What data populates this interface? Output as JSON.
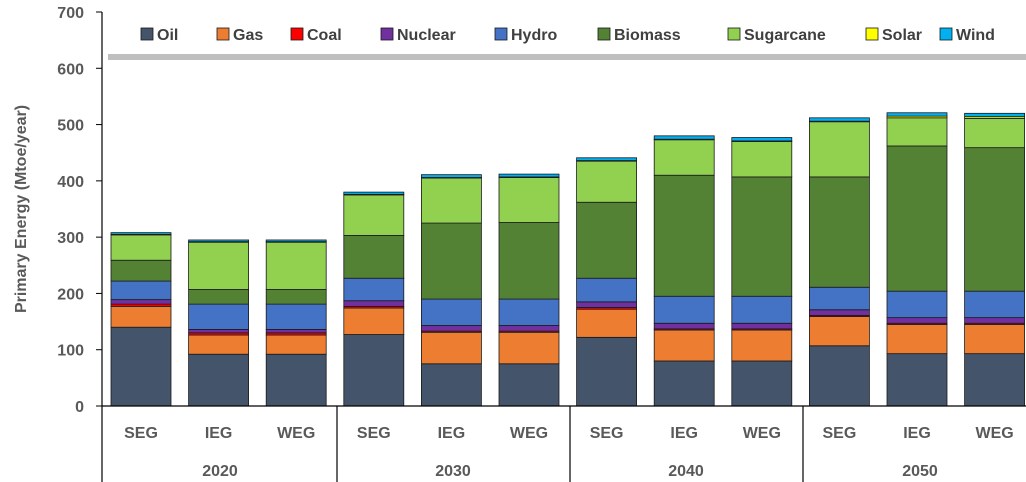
{
  "chart_data": {
    "type": "bar",
    "stacked": true,
    "title": "",
    "xlabel": "",
    "ylabel": "Primary Energy (Mtoe/year)",
    "ylim": [
      0,
      700
    ],
    "yticks": [
      0,
      100,
      200,
      300,
      400,
      500,
      600,
      700
    ],
    "grid": false,
    "legend_position": "top",
    "categories": [
      "SEG",
      "IEG",
      "WEG",
      "SEG",
      "IEG",
      "WEG",
      "SEG",
      "IEG",
      "WEG",
      "SEG",
      "IEG",
      "WEG"
    ],
    "groups": [
      {
        "label": "2020",
        "categories": [
          "SEG",
          "IEG",
          "WEG"
        ]
      },
      {
        "label": "2030",
        "categories": [
          "SEG",
          "IEG",
          "WEG"
        ]
      },
      {
        "label": "2040",
        "categories": [
          "SEG",
          "IEG",
          "WEG"
        ]
      },
      {
        "label": "2050",
        "categories": [
          "SEG",
          "IEG",
          "WEG"
        ]
      }
    ],
    "series": [
      {
        "name": "Oil",
        "color": "#44546A",
        "values": [
          140,
          92,
          92,
          127,
          75,
          75,
          122,
          80,
          80,
          107,
          93,
          93
        ]
      },
      {
        "name": "Gas",
        "color": "#ED7D31",
        "values": [
          37,
          34,
          34,
          47,
          56,
          56,
          50,
          55,
          55,
          52,
          52,
          52
        ]
      },
      {
        "name": "Coal",
        "color": "#FF0000",
        "values": [
          4,
          4,
          4,
          3,
          2,
          2,
          3,
          2,
          2,
          2,
          2,
          2
        ]
      },
      {
        "name": "Nuclear",
        "color": "#7030A0",
        "values": [
          8,
          6,
          6,
          10,
          10,
          10,
          10,
          10,
          10,
          10,
          10,
          10
        ]
      },
      {
        "name": "Hydro",
        "color": "#4472C4",
        "values": [
          33,
          45,
          45,
          40,
          47,
          47,
          42,
          48,
          48,
          40,
          47,
          47
        ]
      },
      {
        "name": "Biomass",
        "color": "#548235",
        "values": [
          37,
          26,
          26,
          76,
          135,
          136,
          135,
          215,
          212,
          196,
          258,
          255
        ]
      },
      {
        "name": "Sugarcane",
        "color": "#92D050",
        "values": [
          45,
          84,
          84,
          72,
          80,
          80,
          73,
          63,
          63,
          98,
          50,
          52
        ]
      },
      {
        "name": "Solar",
        "color": "#FFFF00",
        "values": [
          1,
          1,
          1,
          1,
          1,
          1,
          1,
          1,
          1,
          1,
          3,
          3
        ]
      },
      {
        "name": "Wind",
        "color": "#00B0F0",
        "values": [
          3,
          3,
          3,
          4,
          5,
          5,
          5,
          6,
          6,
          6,
          6,
          6
        ]
      }
    ]
  }
}
